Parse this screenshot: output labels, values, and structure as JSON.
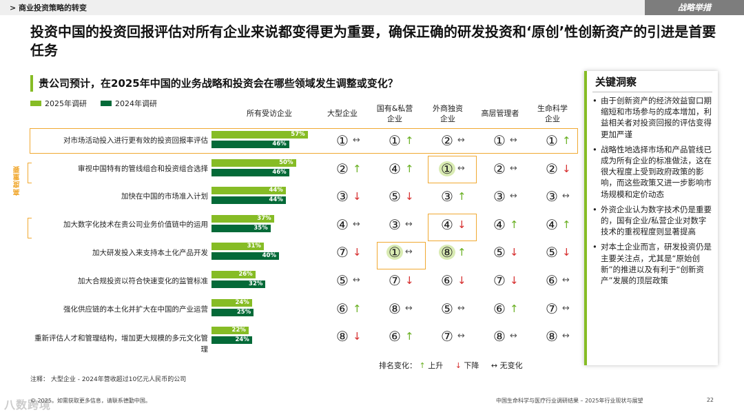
{
  "header": {
    "section": "> 商业投资策略的转变",
    "tag": "战略举措"
  },
  "headline": "投资中国的投资回报评估对所有企业来说都变得更为重要，确保正确的研发投资和‘原创’性创新资产的引进是首要任务",
  "question": "贵公司预计，在2025年中国的业务战略和投资会在哪些领域发生调整或变化？",
  "legend": {
    "y2025": "2025年调研",
    "y2024": "2024年调研"
  },
  "colors": {
    "y2025": "#86bc25",
    "y2024": "#046a38",
    "accent": "#f0a830",
    "up": "#6ab023",
    "down": "#d62c2c"
  },
  "high_priority_label": "高度重要",
  "columns": [
    {
      "key": "all",
      "label": "所有受访企业"
    },
    {
      "key": "large",
      "label": "大型企业"
    },
    {
      "key": "soe",
      "label": "国有&私营\n企业"
    },
    {
      "key": "foreign",
      "label": "外商独资\n企业"
    },
    {
      "key": "exec",
      "label": "高层管理者"
    },
    {
      "key": "life",
      "label": "生命科学\n企业"
    }
  ],
  "chart_data": {
    "type": "bar",
    "title": "贵公司预计，在2025年中国的业务战略和投资会在哪些领域发生调整或变化？",
    "xlabel": "",
    "ylabel": "",
    "xlim": [
      0,
      100
    ],
    "categories": [
      "对市场活动投入进行更有效的投资回报率评估",
      "审视中国特有的管线组合和投资组合选择",
      "加快在中国的市场准入计划",
      "加大数字化技术在贵公司业务价值链中的运用",
      "加大研发投入来支持本土化产品开发",
      "加大合规投资以符合快速变化的监管标准",
      "强化供应链的本土化并扩大在中国的产业运营",
      "重新评估人才和管理结构，增加更大规模的多元文化管理"
    ],
    "series": [
      {
        "name": "2025年调研",
        "values": [
          57,
          50,
          44,
          37,
          31,
          26,
          24,
          22
        ],
        "labels": [
          "57%",
          "50%",
          "44%",
          "37%",
          "31%",
          "26%",
          "24%",
          "22%"
        ]
      },
      {
        "name": "2024年调研",
        "values": [
          46,
          46,
          44,
          35,
          40,
          32,
          25,
          24
        ],
        "labels": [
          "46%",
          "46%",
          "44%",
          "35%",
          "40%",
          "32%",
          "25%",
          "24%"
        ]
      }
    ]
  },
  "ranks": [
    [
      {
        "n": "①",
        "c": "same"
      },
      {
        "n": "①",
        "c": "up"
      },
      {
        "n": "②",
        "c": "same"
      },
      {
        "n": "①",
        "c": "same"
      },
      {
        "n": "①",
        "c": "up"
      }
    ],
    [
      {
        "n": "②",
        "c": "up"
      },
      {
        "n": "④",
        "c": "up"
      },
      {
        "n": "①",
        "c": "same",
        "shade": true
      },
      {
        "n": "②",
        "c": "same"
      },
      {
        "n": "②",
        "c": "down"
      }
    ],
    [
      {
        "n": "③",
        "c": "down"
      },
      {
        "n": "⑤",
        "c": "down"
      },
      {
        "n": "③",
        "c": "up"
      },
      {
        "n": "③",
        "c": "same"
      },
      {
        "n": "③",
        "c": "same"
      }
    ],
    [
      {
        "n": "④",
        "c": "same"
      },
      {
        "n": "③",
        "c": "same"
      },
      {
        "n": "④",
        "c": "down"
      },
      {
        "n": "④",
        "c": "up"
      },
      {
        "n": "④",
        "c": "up"
      }
    ],
    [
      {
        "n": "⑦",
        "c": "down"
      },
      {
        "n": "①",
        "c": "same",
        "shade": true
      },
      {
        "n": "⑧",
        "c": "up",
        "shade": true
      },
      {
        "n": "⑤",
        "c": "down"
      },
      {
        "n": "⑤",
        "c": "down"
      }
    ],
    [
      {
        "n": "⑤",
        "c": "same"
      },
      {
        "n": "⑦",
        "c": "down"
      },
      {
        "n": "⑥",
        "c": "down"
      },
      {
        "n": "⑦",
        "c": "down"
      },
      {
        "n": "⑥",
        "c": "same"
      }
    ],
    [
      {
        "n": "⑥",
        "c": "up"
      },
      {
        "n": "⑧",
        "c": "same"
      },
      {
        "n": "⑤",
        "c": "same"
      },
      {
        "n": "⑥",
        "c": "up"
      },
      {
        "n": "⑦",
        "c": "same"
      }
    ],
    [
      {
        "n": "⑧",
        "c": "down"
      },
      {
        "n": "⑥",
        "c": "up"
      },
      {
        "n": "⑦",
        "c": "same"
      },
      {
        "n": "⑧",
        "c": "same"
      },
      {
        "n": "⑧",
        "c": "same"
      }
    ]
  ],
  "arrows": {
    "up": "↑",
    "down": "↓",
    "same": "↔"
  },
  "rank_legend": {
    "label": "排名变化：",
    "up_label": "上升",
    "down_label": "下降",
    "same_label": "无变化"
  },
  "note": "注释：  大型企业 - 2024年营收超过10亿元人民币的公司",
  "insights": {
    "title": "关键洞察",
    "items": [
      "由于创新资产的经济效益窗口期缩短和市场参与的成本增加，利益相关者对投资回报的评估变得更加严谨",
      "战略性地选择市场和产品管线已成为所有企业的标准做法，这在很大程度上受到政府政策的影响，而这些政策又进一步影响市场规模和定价动态",
      "外资企业认为数字技术仍是重要的，国有企业/私营企业对数字技术的重视程度则显著提高",
      "对本土企业而言，研发投资仍是主要关注点，尤其是“原始创新”的推进以及有利于“创新资产”发展的顶层政策"
    ]
  },
  "footer": {
    "copyright": "© 2025。如需获取更多信息，请联系德勤中国。",
    "report": "中国生命科学与医疗行业调研结果 – 2025年行业现状与展望",
    "page": "22",
    "watermark": "八数跨境"
  }
}
